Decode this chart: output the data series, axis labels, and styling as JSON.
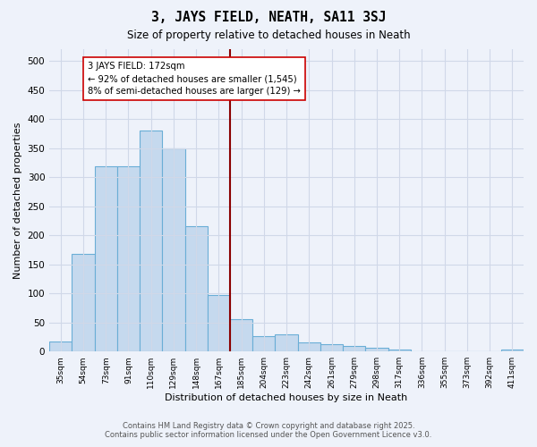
{
  "title": "3, JAYS FIELD, NEATH, SA11 3SJ",
  "subtitle": "Size of property relative to detached houses in Neath",
  "xlabel": "Distribution of detached houses by size in Neath",
  "ylabel": "Number of detached properties",
  "categories": [
    "35sqm",
    "54sqm",
    "73sqm",
    "91sqm",
    "110sqm",
    "129sqm",
    "148sqm",
    "167sqm",
    "185sqm",
    "204sqm",
    "223sqm",
    "242sqm",
    "261sqm",
    "279sqm",
    "298sqm",
    "317sqm",
    "336sqm",
    "355sqm",
    "373sqm",
    "392sqm",
    "411sqm"
  ],
  "values": [
    18,
    168,
    318,
    318,
    380,
    349,
    215,
    97,
    55,
    26,
    30,
    15,
    13,
    10,
    7,
    4,
    1,
    1,
    0,
    1,
    3
  ],
  "bar_color": "#c5d9ee",
  "bar_edge_color": "#6aaed6",
  "marker_index": 7,
  "marker_label": "3 JAYS FIELD: 172sqm",
  "marker_color": "#8b0000",
  "annotation_line1": "← 92% of detached houses are smaller (1,545)",
  "annotation_line2": "8% of semi-detached houses are larger (129) →",
  "annotation_box_facecolor": "#ffffff",
  "annotation_box_edge": "#cc0000",
  "footer1": "Contains HM Land Registry data © Crown copyright and database right 2025.",
  "footer2": "Contains public sector information licensed under the Open Government Licence v3.0.",
  "bg_color": "#eef2fa",
  "plot_bg_color": "#eef2fa",
  "grid_color": "#d0d8e8",
  "ylim": [
    0,
    520
  ],
  "yticks": [
    0,
    50,
    100,
    150,
    200,
    250,
    300,
    350,
    400,
    450,
    500
  ]
}
